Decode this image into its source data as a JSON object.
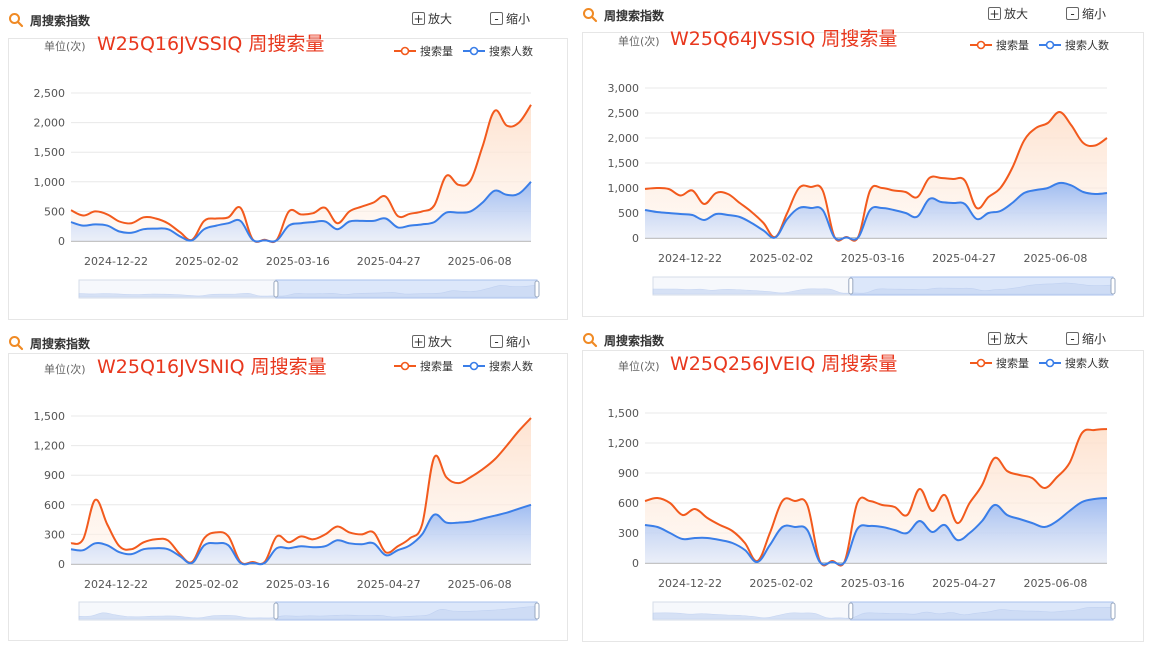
{
  "labels": {
    "header_title": "周搜索指数",
    "zoom_in": "放大",
    "zoom_out": "缩小",
    "unit": "单位(次)",
    "legend_volume": "搜索量",
    "legend_people": "搜索人数"
  },
  "colors": {
    "volume": "#f25a1d",
    "people": "#3a7ee8",
    "title": "#e8371d"
  },
  "chart_data": [
    {
      "type": "area",
      "title": "W25Q16JVSSIQ 周搜索量",
      "ylim": [
        0,
        2500
      ],
      "yticks": [
        "0",
        "500",
        "1,000",
        "1,500",
        "2,000",
        "2,500"
      ],
      "xticks": [
        "2024-12-22",
        "2025-02-02",
        "2025-03-16",
        "2025-04-27",
        "2025-06-08"
      ],
      "legend_position": "top-right",
      "series": [
        {
          "name": "搜索量",
          "values": [
            520,
            430,
            500,
            450,
            330,
            300,
            400,
            380,
            300,
            150,
            20,
            340,
            380,
            400,
            560,
            30,
            20,
            20,
            500,
            450,
            470,
            560,
            300,
            500,
            580,
            650,
            750,
            420,
            460,
            500,
            600,
            1100,
            950,
            1020,
            1600,
            2200,
            1950,
            2000,
            2300
          ]
        },
        {
          "name": "搜索人数",
          "values": [
            320,
            260,
            280,
            260,
            160,
            140,
            200,
            210,
            200,
            80,
            10,
            200,
            260,
            300,
            340,
            20,
            10,
            10,
            260,
            300,
            320,
            330,
            200,
            330,
            340,
            340,
            380,
            230,
            260,
            280,
            320,
            480,
            480,
            500,
            650,
            850,
            780,
            800,
            1000
          ]
        }
      ]
    },
    {
      "type": "area",
      "title": "W25Q64JVSSIQ 周搜索量",
      "ylim": [
        0,
        3000
      ],
      "yticks": [
        "0",
        "500",
        "1,000",
        "1,500",
        "2,000",
        "2,500",
        "3,000"
      ],
      "xticks": [
        "2024-12-22",
        "2025-02-02",
        "2025-03-16",
        "2025-04-27",
        "2025-06-08"
      ],
      "legend_position": "top-right",
      "series": [
        {
          "name": "搜索量",
          "values": [
            980,
            1000,
            980,
            850,
            950,
            680,
            900,
            880,
            700,
            520,
            300,
            20,
            500,
            1000,
            1020,
            950,
            20,
            20,
            20,
            950,
            1000,
            950,
            920,
            820,
            1200,
            1200,
            1180,
            1150,
            600,
            820,
            1000,
            1400,
            1950,
            2200,
            2300,
            2520,
            2250,
            1900,
            1850,
            2000
          ]
        },
        {
          "name": "搜索人数",
          "values": [
            560,
            520,
            500,
            480,
            460,
            360,
            480,
            460,
            420,
            300,
            150,
            10,
            380,
            600,
            600,
            560,
            10,
            10,
            10,
            560,
            600,
            560,
            500,
            430,
            780,
            720,
            700,
            680,
            380,
            500,
            540,
            700,
            900,
            960,
            1000,
            1100,
            1050,
            920,
            880,
            900
          ]
        }
      ]
    },
    {
      "type": "area",
      "title": "W25Q16JVSNIQ 周搜索量",
      "ylim": [
        0,
        1500
      ],
      "yticks": [
        "0",
        "300",
        "600",
        "900",
        "1,200",
        "1,500"
      ],
      "xticks": [
        "2024-12-22",
        "2025-02-02",
        "2025-03-16",
        "2025-04-27",
        "2025-06-08"
      ],
      "legend_position": "top-right",
      "series": [
        {
          "name": "搜索量",
          "values": [
            210,
            250,
            650,
            400,
            180,
            150,
            220,
            250,
            240,
            100,
            20,
            260,
            320,
            280,
            20,
            20,
            20,
            280,
            220,
            280,
            250,
            300,
            380,
            320,
            300,
            320,
            120,
            180,
            260,
            400,
            1080,
            880,
            820,
            880,
            960,
            1060,
            1200,
            1350,
            1480
          ]
        },
        {
          "name": "搜索人数",
          "values": [
            150,
            140,
            210,
            190,
            120,
            100,
            150,
            160,
            150,
            80,
            10,
            190,
            210,
            190,
            10,
            10,
            10,
            160,
            160,
            180,
            170,
            180,
            240,
            210,
            200,
            210,
            90,
            140,
            190,
            300,
            500,
            420,
            420,
            430,
            460,
            490,
            520,
            560,
            600
          ]
        }
      ]
    },
    {
      "type": "area",
      "title": "W25Q256JVEIQ 周搜索量",
      "ylim": [
        0,
        1500
      ],
      "yticks": [
        "0",
        "300",
        "600",
        "900",
        "1,200",
        "1,500"
      ],
      "xticks": [
        "2024-12-22",
        "2025-02-02",
        "2025-03-16",
        "2025-04-27",
        "2025-06-08"
      ],
      "legend_position": "top-right",
      "series": [
        {
          "name": "搜索量",
          "values": [
            620,
            650,
            600,
            480,
            540,
            450,
            380,
            320,
            200,
            20,
            300,
            620,
            620,
            580,
            20,
            20,
            20,
            600,
            620,
            580,
            560,
            480,
            740,
            520,
            680,
            400,
            600,
            780,
            1050,
            920,
            880,
            850,
            750,
            860,
            1000,
            1300,
            1330,
            1340
          ]
        },
        {
          "name": "搜索人数",
          "values": [
            380,
            360,
            300,
            240,
            250,
            250,
            230,
            200,
            130,
            10,
            180,
            360,
            360,
            330,
            10,
            10,
            10,
            340,
            370,
            360,
            330,
            300,
            420,
            310,
            380,
            230,
            300,
            420,
            580,
            480,
            440,
            400,
            360,
            420,
            520,
            610,
            640,
            650
          ]
        }
      ]
    }
  ]
}
